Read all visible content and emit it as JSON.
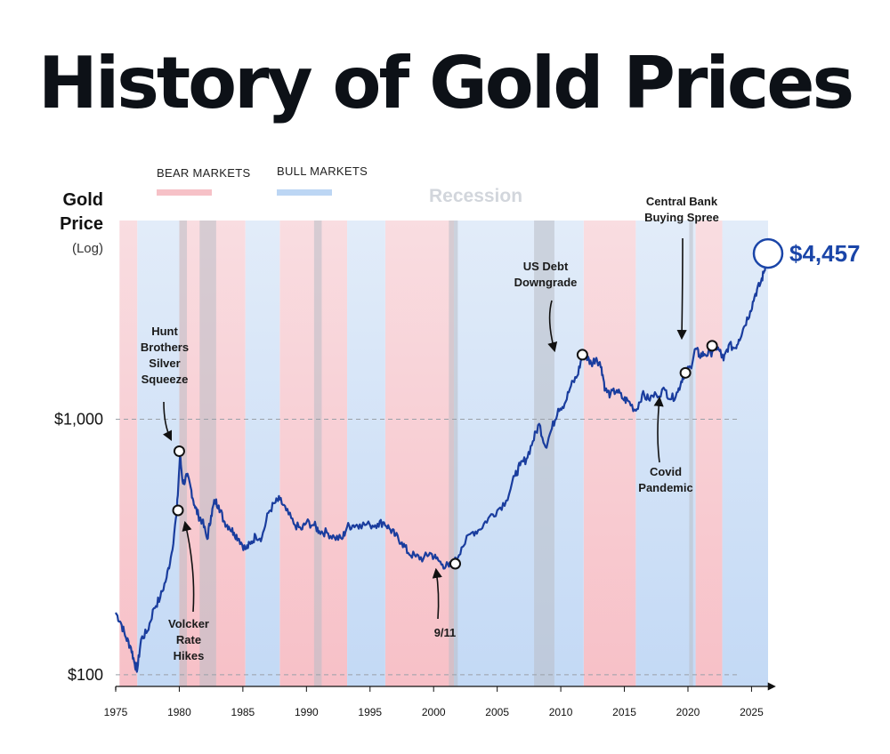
{
  "title": "History of Gold Prices",
  "legend": {
    "bear_label": "BEAR MARKETS",
    "bull_label": "BULL MARKETS",
    "recession_label": "Recession"
  },
  "axis": {
    "ylabel_line1": "Gold",
    "ylabel_line2": "Price",
    "ylabel_line3": "(Log)"
  },
  "colors": {
    "bear": "#f8c9cf",
    "bull": "#cfe1f7",
    "recession": "#b9bec6",
    "line": "#1a3d9e",
    "accent": "#1a45a8"
  },
  "chart_data": {
    "type": "line",
    "title": "History of Gold Prices",
    "ylabel": "Gold Price (Log)",
    "xlabel": "",
    "yscale": "log",
    "xlim": [
      1975,
      2027
    ],
    "ylim": [
      90,
      6000
    ],
    "xticks": [
      {
        "value": 1975,
        "label": "1975"
      },
      {
        "value": 1980,
        "label": "1980"
      },
      {
        "value": 1985,
        "label": "1985"
      },
      {
        "value": 1990,
        "label": "1990"
      },
      {
        "value": 1995,
        "label": "1995"
      },
      {
        "value": 2000,
        "label": "2000"
      },
      {
        "value": 2005,
        "label": "2005"
      },
      {
        "value": 2010,
        "label": "2010"
      },
      {
        "value": 2015,
        "label": "2015"
      },
      {
        "value": 2020,
        "label": "2020"
      },
      {
        "value": 2025,
        "label": "2025"
      }
    ],
    "yticks": [
      {
        "value": 100,
        "label": "$100"
      },
      {
        "value": 1000,
        "label": "$1,000"
      }
    ],
    "bear_markets": [
      [
        1975.3,
        1976.7
      ],
      [
        1980.0,
        1985.2
      ],
      [
        1987.9,
        1993.2
      ],
      [
        1996.2,
        2001.6
      ],
      [
        2011.8,
        2015.9
      ],
      [
        2020.6,
        2022.7
      ]
    ],
    "bull_markets": [
      [
        1976.7,
        1980.0
      ],
      [
        1985.2,
        1987.9
      ],
      [
        1993.2,
        1996.2
      ],
      [
        2001.6,
        2011.8
      ],
      [
        2015.9,
        2020.6
      ],
      [
        2022.7,
        2026.3
      ]
    ],
    "recessions": [
      [
        1980.0,
        1980.6
      ],
      [
        1981.6,
        1982.9
      ],
      [
        1990.6,
        1991.2
      ],
      [
        2001.2,
        2001.9
      ],
      [
        2007.9,
        2009.5
      ],
      [
        2020.1,
        2020.4
      ]
    ],
    "series": [
      {
        "name": "Gold Price",
        "x": [
          1975.0,
          1975.4,
          1975.8,
          1976.2,
          1976.5,
          1976.7,
          1977.0,
          1977.5,
          1978.0,
          1978.5,
          1979.0,
          1979.4,
          1979.8,
          1980.05,
          1980.3,
          1980.6,
          1980.9,
          1981.2,
          1981.5,
          1981.8,
          1982.2,
          1982.5,
          1982.8,
          1983.1,
          1983.5,
          1983.9,
          1984.3,
          1984.7,
          1985.2,
          1985.6,
          1986.0,
          1986.5,
          1987.0,
          1987.5,
          1987.9,
          1988.4,
          1989.0,
          1989.6,
          1990.0,
          1990.6,
          1991.0,
          1991.6,
          1992.2,
          1992.8,
          1993.2,
          1993.7,
          1994.2,
          1995.0,
          1995.6,
          1996.1,
          1996.6,
          1997.0,
          1997.5,
          1998.0,
          1998.6,
          1999.2,
          1999.7,
          2000.2,
          2000.7,
          2001.2,
          2001.6,
          2002.2,
          2003.0,
          2003.6,
          2004.3,
          2005.0,
          2005.7,
          2006.4,
          2006.8,
          2007.3,
          2007.8,
          2008.3,
          2008.8,
          2009.3,
          2009.8,
          2010.3,
          2010.8,
          2011.3,
          2011.7,
          2012.0,
          2012.4,
          2012.8,
          2013.2,
          2013.5,
          2013.9,
          2014.4,
          2014.9,
          2015.3,
          2015.9,
          2016.4,
          2016.9,
          2017.5,
          2018.2,
          2018.7,
          2019.2,
          2019.6,
          2019.8,
          2020.2,
          2020.6,
          2020.9,
          2021.3,
          2021.8,
          2022.1,
          2022.5,
          2022.8,
          2023.2,
          2023.7,
          2024.0,
          2024.4,
          2024.9,
          2025.3,
          2025.7,
          2026.0,
          2026.3
        ],
        "values": [
          175,
          160,
          140,
          128,
          110,
          105,
          138,
          148,
          182,
          200,
          240,
          300,
          430,
          720,
          560,
          600,
          540,
          460,
          420,
          400,
          340,
          420,
          480,
          460,
          400,
          380,
          360,
          340,
          310,
          325,
          350,
          345,
          430,
          470,
          485,
          440,
          390,
          370,
          395,
          385,
          365,
          360,
          345,
          340,
          380,
          385,
          388,
          385,
          390,
          395,
          370,
          350,
          330,
          300,
          290,
          285,
          300,
          285,
          270,
          265,
          272,
          315,
          360,
          370,
          410,
          440,
          480,
          600,
          660,
          700,
          820,
          960,
          780,
          920,
          1100,
          1150,
          1350,
          1480,
          1780,
          1760,
          1650,
          1740,
          1600,
          1300,
          1250,
          1300,
          1200,
          1180,
          1080,
          1250,
          1200,
          1250,
          1300,
          1200,
          1280,
          1480,
          1520,
          1600,
          1890,
          1780,
          1800,
          1810,
          1950,
          1850,
          1700,
          1950,
          1900,
          2050,
          2300,
          2650,
          3100,
          3400,
          3800,
          4457
        ]
      }
    ],
    "annotations": [
      {
        "id": "hunt",
        "lines": [
          "Hunt",
          "Brothers",
          "Silver",
          "Squeeze"
        ],
        "x": 1980.0,
        "y": 750
      },
      {
        "id": "volcker",
        "lines": [
          "Volcker",
          "Rate",
          "Hikes"
        ],
        "x": 1979.9,
        "y": 440
      },
      {
        "id": "nine-eleven",
        "lines": [
          "9/11"
        ],
        "x": 2001.7,
        "y": 272
      },
      {
        "id": "us-debt",
        "lines": [
          "US Debt",
          "Downgrade"
        ],
        "x": 2011.7,
        "y": 1790
      },
      {
        "id": "covid",
        "lines": [
          "Covid",
          "Pandemic"
        ],
        "x": 2019.8,
        "y": 1520
      },
      {
        "id": "central-bank",
        "lines": [
          "Central Bank",
          "Buying Spree"
        ],
        "x": 2021.9,
        "y": 1940
      }
    ],
    "latest": {
      "x": 2026.3,
      "value": 4457,
      "label": "$4,457"
    }
  }
}
